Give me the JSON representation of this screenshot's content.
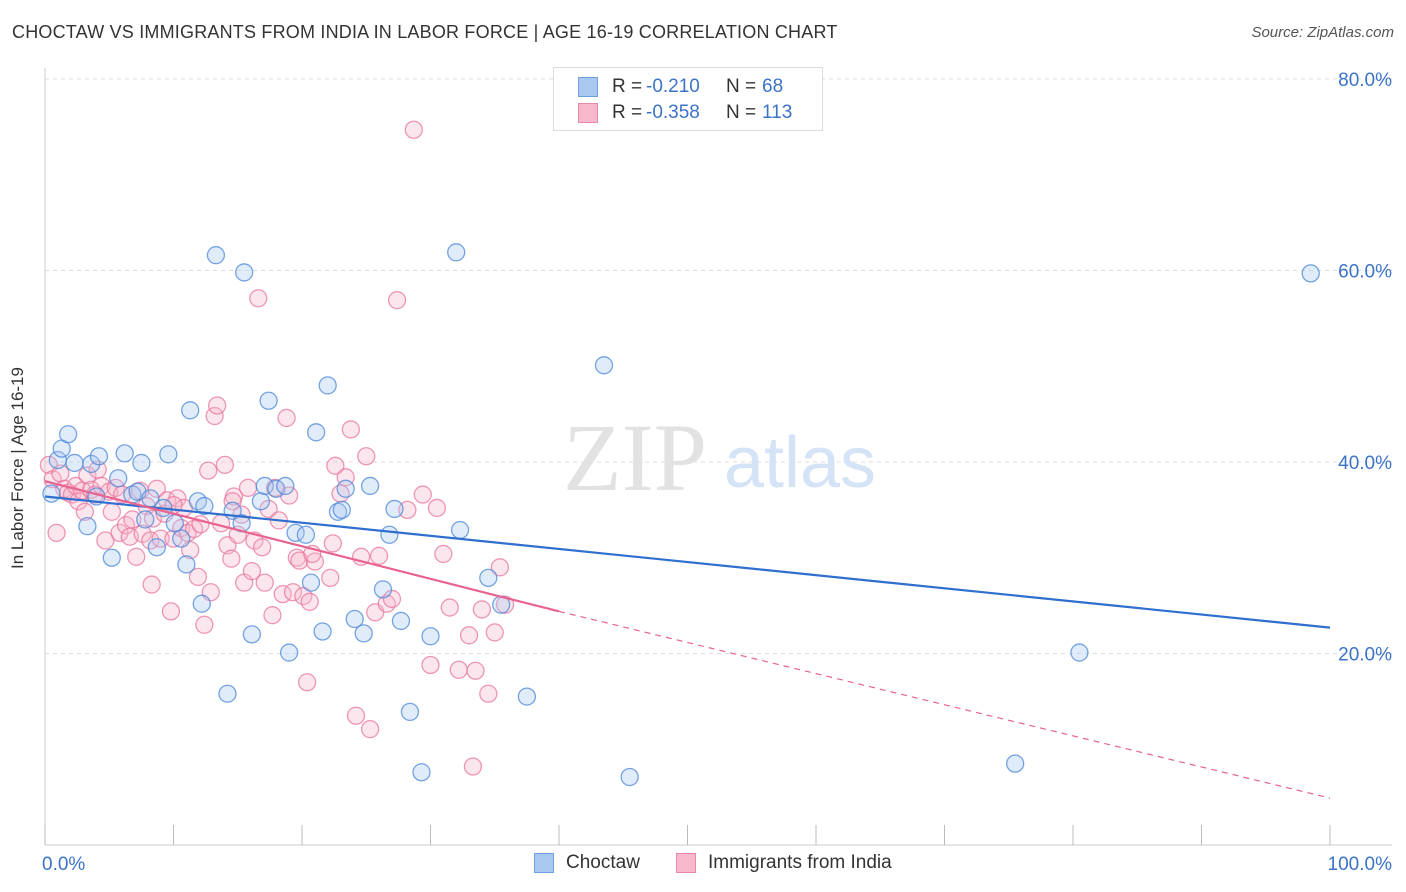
{
  "title": "CHOCTAW VS IMMIGRANTS FROM INDIA IN LABOR FORCE | AGE 16-19 CORRELATION CHART",
  "source": "Source: ZipAtlas.com",
  "watermark": {
    "zip": "ZIP",
    "atlas": "atlas"
  },
  "legend": {
    "rows": [
      {
        "r_label": "R =",
        "r_value": "-0.210",
        "n_label": "N =",
        "n_value": "68",
        "color": "#a9c8f0",
        "border": "#6f9fdc"
      },
      {
        "r_label": "R =",
        "r_value": "-0.358",
        "n_label": "N =",
        "n_value": "113",
        "color": "#f7b8cc",
        "border": "#e88aa8"
      }
    ]
  },
  "bottom_legend": [
    {
      "label": "Choctaw",
      "color": "#a9c8f0",
      "border": "#6f9fdc"
    },
    {
      "label": "Immigrants from India",
      "color": "#f7b8cc",
      "border": "#e88aa8"
    }
  ],
  "colors": {
    "choctaw": "#4a86d8",
    "india": "#e8769e",
    "choctaw_line": "#2f6fcf",
    "india_line": "#e8638f",
    "axis_text": "#3b73c8"
  },
  "chart_data": {
    "type": "scatter",
    "title": "CHOCTAW VS IMMIGRANTS FROM INDIA IN LABOR FORCE | AGE 16-19 CORRELATION CHART",
    "xlabel": "",
    "ylabel": "In Labor Force | Age 16-19",
    "xlim": [
      0,
      100
    ],
    "ylim": [
      0,
      80
    ],
    "x_tick_labels": [
      "0.0%",
      "100.0%"
    ],
    "y_ticks": [
      20,
      40,
      60,
      80
    ],
    "y_tick_labels": [
      "20.0%",
      "40.0%",
      "60.0%",
      "80.0%"
    ],
    "grid": "horizontal dashed",
    "legend_placement": "top-center",
    "series": [
      {
        "name": "Choctaw",
        "trend": {
          "x": [
            0,
            100
          ],
          "y": [
            36.4,
            22.7
          ],
          "style": "solid"
        },
        "points": [
          [
            0.5,
            36.7
          ],
          [
            1.0,
            40.2
          ],
          [
            1.3,
            41.4
          ],
          [
            1.8,
            42.9
          ],
          [
            2.3,
            39.9
          ],
          [
            3.3,
            33.3
          ],
          [
            3.6,
            39.8
          ],
          [
            4.0,
            36.4
          ],
          [
            4.2,
            40.6
          ],
          [
            5.2,
            30.0
          ],
          [
            5.7,
            38.3
          ],
          [
            6.2,
            40.9
          ],
          [
            6.8,
            36.6
          ],
          [
            7.2,
            36.9
          ],
          [
            7.5,
            39.9
          ],
          [
            7.8,
            34.0
          ],
          [
            8.2,
            36.2
          ],
          [
            8.7,
            31.1
          ],
          [
            9.2,
            35.2
          ],
          [
            9.6,
            40.8
          ],
          [
            10.1,
            33.6
          ],
          [
            10.6,
            32.0
          ],
          [
            11.0,
            29.3
          ],
          [
            11.3,
            45.4
          ],
          [
            11.9,
            35.9
          ],
          [
            12.2,
            25.2
          ],
          [
            12.4,
            35.4
          ],
          [
            13.3,
            61.6
          ],
          [
            14.2,
            15.8
          ],
          [
            14.6,
            34.9
          ],
          [
            15.3,
            33.6
          ],
          [
            15.5,
            59.8
          ],
          [
            16.1,
            22.0
          ],
          [
            16.8,
            35.9
          ],
          [
            17.1,
            37.5
          ],
          [
            17.4,
            46.4
          ],
          [
            18.0,
            37.2
          ],
          [
            18.7,
            37.5
          ],
          [
            19.0,
            20.1
          ],
          [
            19.5,
            32.6
          ],
          [
            20.3,
            32.4
          ],
          [
            20.7,
            27.4
          ],
          [
            21.1,
            43.1
          ],
          [
            21.6,
            22.3
          ],
          [
            22.0,
            48.0
          ],
          [
            22.8,
            34.8
          ],
          [
            23.1,
            35.0
          ],
          [
            23.4,
            37.2
          ],
          [
            24.1,
            23.6
          ],
          [
            24.8,
            22.1
          ],
          [
            25.3,
            37.5
          ],
          [
            26.3,
            26.7
          ],
          [
            26.8,
            32.4
          ],
          [
            27.2,
            35.1
          ],
          [
            27.7,
            23.4
          ],
          [
            28.4,
            13.9
          ],
          [
            29.3,
            7.6
          ],
          [
            30.0,
            21.8
          ],
          [
            32.0,
            61.9
          ],
          [
            32.3,
            32.9
          ],
          [
            34.5,
            27.9
          ],
          [
            35.5,
            25.1
          ],
          [
            37.5,
            15.5
          ],
          [
            43.5,
            50.1
          ],
          [
            45.5,
            7.1
          ],
          [
            75.5,
            8.5
          ],
          [
            80.5,
            20.1
          ],
          [
            98.5,
            59.7
          ]
        ]
      },
      {
        "name": "Immigrants from India",
        "trend": {
          "x": [
            0,
            40
          ],
          "y": [
            38.0,
            24.4
          ],
          "style": "solid",
          "extension": {
            "x": [
              40,
              100
            ],
            "y": [
              24.4,
              4.9
            ],
            "style": "dashed"
          }
        },
        "points": [
          [
            0.3,
            39.7
          ],
          [
            0.6,
            38.2
          ],
          [
            0.9,
            32.6
          ],
          [
            1.2,
            38.8
          ],
          [
            1.5,
            37.2
          ],
          [
            1.8,
            36.8
          ],
          [
            2.1,
            36.6
          ],
          [
            2.4,
            37.5
          ],
          [
            2.6,
            35.9
          ],
          [
            2.9,
            37.0
          ],
          [
            3.1,
            34.8
          ],
          [
            3.3,
            38.6
          ],
          [
            3.6,
            37.1
          ],
          [
            3.9,
            36.6
          ],
          [
            4.1,
            39.2
          ],
          [
            4.4,
            37.5
          ],
          [
            4.7,
            31.8
          ],
          [
            5.0,
            36.9
          ],
          [
            5.2,
            34.8
          ],
          [
            5.5,
            37.3
          ],
          [
            5.8,
            32.6
          ],
          [
            6.0,
            36.6
          ],
          [
            6.3,
            33.4
          ],
          [
            6.6,
            32.2
          ],
          [
            6.8,
            34.0
          ],
          [
            7.1,
            30.1
          ],
          [
            7.4,
            37.0
          ],
          [
            7.6,
            32.5
          ],
          [
            7.9,
            35.4
          ],
          [
            8.2,
            31.8
          ],
          [
            8.4,
            34.1
          ],
          [
            8.7,
            37.2
          ],
          [
            9.0,
            32.0
          ],
          [
            9.3,
            34.6
          ],
          [
            9.5,
            36.0
          ],
          [
            9.8,
            24.4
          ],
          [
            10.0,
            32.0
          ],
          [
            10.3,
            36.2
          ],
          [
            10.6,
            33.1
          ],
          [
            10.8,
            35.2
          ],
          [
            11.1,
            32.6
          ],
          [
            11.3,
            30.8
          ],
          [
            11.6,
            33.0
          ],
          [
            11.9,
            28.0
          ],
          [
            12.1,
            33.5
          ],
          [
            12.4,
            23.0
          ],
          [
            12.7,
            39.1
          ],
          [
            12.9,
            26.4
          ],
          [
            13.2,
            44.8
          ],
          [
            13.4,
            45.9
          ],
          [
            13.7,
            33.6
          ],
          [
            14.0,
            39.7
          ],
          [
            14.2,
            31.3
          ],
          [
            14.5,
            29.9
          ],
          [
            14.7,
            36.4
          ],
          [
            15.0,
            32.4
          ],
          [
            15.3,
            34.5
          ],
          [
            15.5,
            27.4
          ],
          [
            15.8,
            37.3
          ],
          [
            16.1,
            28.6
          ],
          [
            16.3,
            31.8
          ],
          [
            16.6,
            57.1
          ],
          [
            16.9,
            31.1
          ],
          [
            17.1,
            27.4
          ],
          [
            17.4,
            35.1
          ],
          [
            17.7,
            24.0
          ],
          [
            17.9,
            37.3
          ],
          [
            18.2,
            33.9
          ],
          [
            18.5,
            26.2
          ],
          [
            18.8,
            44.6
          ],
          [
            19.0,
            36.5
          ],
          [
            19.3,
            26.4
          ],
          [
            19.6,
            30.0
          ],
          [
            19.8,
            29.7
          ],
          [
            20.1,
            26.0
          ],
          [
            20.4,
            17.0
          ],
          [
            20.6,
            25.4
          ],
          [
            21.0,
            29.6
          ],
          [
            22.2,
            27.9
          ],
          [
            22.6,
            39.6
          ],
          [
            23.0,
            36.7
          ],
          [
            23.4,
            38.4
          ],
          [
            23.8,
            43.4
          ],
          [
            24.2,
            13.5
          ],
          [
            24.6,
            30.1
          ],
          [
            25.0,
            40.6
          ],
          [
            25.3,
            12.1
          ],
          [
            25.7,
            24.3
          ],
          [
            26.6,
            25.2
          ],
          [
            27.0,
            25.7
          ],
          [
            27.4,
            56.9
          ],
          [
            28.2,
            35.0
          ],
          [
            28.7,
            74.7
          ],
          [
            29.4,
            36.6
          ],
          [
            30.0,
            18.8
          ],
          [
            30.5,
            35.2
          ],
          [
            31.5,
            24.8
          ],
          [
            32.2,
            18.3
          ],
          [
            33.0,
            21.9
          ],
          [
            33.3,
            8.2
          ],
          [
            33.5,
            18.2
          ],
          [
            34.0,
            24.6
          ],
          [
            34.5,
            15.8
          ],
          [
            35.0,
            22.2
          ],
          [
            35.4,
            29.0
          ],
          [
            35.8,
            25.1
          ],
          [
            8.3,
            27.2
          ],
          [
            10.0,
            35.5
          ],
          [
            14.6,
            35.9
          ],
          [
            20.8,
            30.4
          ],
          [
            26.0,
            30.2
          ],
          [
            31.0,
            30.4
          ],
          [
            22.4,
            31.5
          ]
        ]
      }
    ]
  }
}
